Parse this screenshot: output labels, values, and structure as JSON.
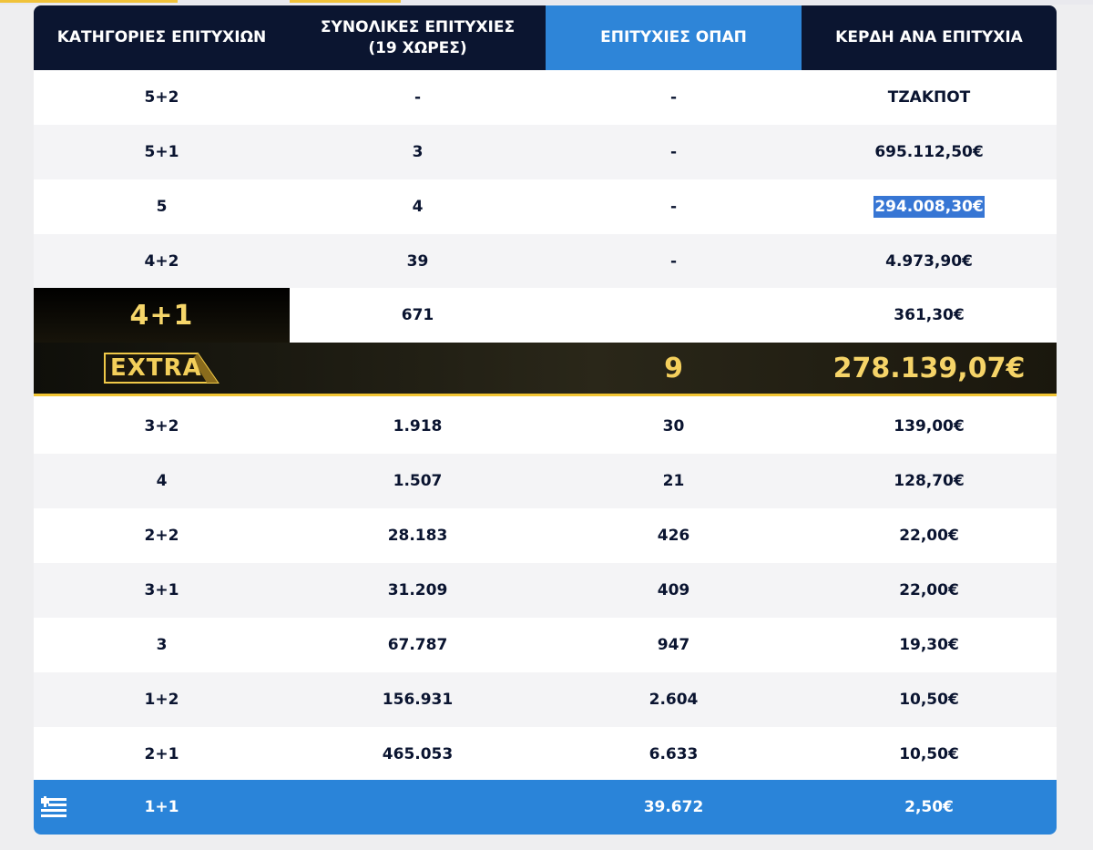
{
  "header": {
    "col0": "ΚΑΤΗΓΟΡΙΕΣ ΕΠΙΤΥΧΙΩΝ",
    "col1_line1": "ΣΥΝΟΛΙΚΕΣ ΕΠΙΤΥΧΙΕΣ",
    "col1_line2": "(19 ΧΩΡΕΣ)",
    "col2": "ΕΠΙΤΥΧΙΕΣ ΟΠΑΠ",
    "col3": "ΚΕΡΔΗ ΑΝΑ ΕΠΙΤΥΧΙΑ"
  },
  "rows_top": [
    {
      "category": "5+2",
      "total": "-",
      "opap": "-",
      "prize": "ΤΖΑΚΠΟΤ"
    },
    {
      "category": "5+1",
      "total": "3",
      "opap": "-",
      "prize": "695.112,50€"
    },
    {
      "category": "5",
      "total": "4",
      "opap": "-",
      "prize": "294.008,30€"
    },
    {
      "category": "4+2",
      "total": "39",
      "opap": "-",
      "prize": "4.973,90€"
    }
  ],
  "extra": {
    "category": "4+1",
    "total": "671",
    "prize": "361,30€",
    "badge": "EXTRA",
    "extra_count": "9",
    "extra_prize": "278.139,07€"
  },
  "rows_bottom": [
    {
      "category": "3+2",
      "total": "1.918",
      "opap": "30",
      "prize": "139,00€"
    },
    {
      "category": "4",
      "total": "1.507",
      "opap": "21",
      "prize": "128,70€"
    },
    {
      "category": "2+2",
      "total": "28.183",
      "opap": "426",
      "prize": "22,00€"
    },
    {
      "category": "3+1",
      "total": "31.209",
      "opap": "409",
      "prize": "22,00€"
    },
    {
      "category": "3",
      "total": "67.787",
      "opap": "947",
      "prize": "19,30€"
    },
    {
      "category": "1+2",
      "total": "156.931",
      "opap": "2.604",
      "prize": "10,50€"
    },
    {
      "category": "2+1",
      "total": "465.053",
      "opap": "6.633",
      "prize": "10,50€"
    }
  ],
  "footer_row": {
    "category": "1+1",
    "total": "",
    "opap": "39.672",
    "prize": "2,50€"
  },
  "colors": {
    "header_bg": "#0b1530",
    "opap_header": "#2e85d8",
    "footer_bg": "#2a84d9",
    "gold": "#f2c533",
    "selection": "#3776d4"
  }
}
